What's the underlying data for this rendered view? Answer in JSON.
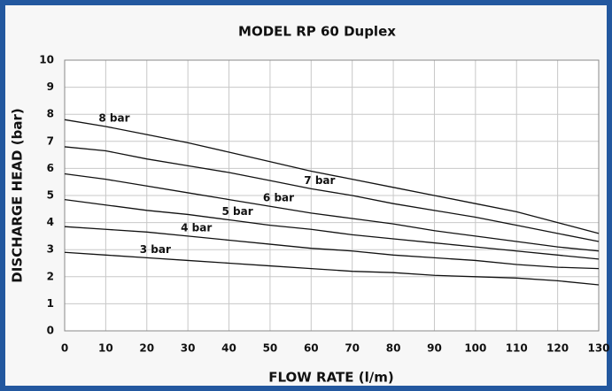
{
  "chart_data": {
    "type": "line",
    "title": "MODEL RP 60 Duplex",
    "xlabel": "FLOW RATE (l/m)",
    "ylabel": "DISCHARGE HEAD (bar)",
    "x": [
      0,
      10,
      20,
      30,
      40,
      50,
      60,
      70,
      80,
      90,
      100,
      110,
      120,
      130
    ],
    "series": [
      {
        "name": "8 bar",
        "color": "#111111",
        "values": [
          7.8,
          7.55,
          7.25,
          6.95,
          6.6,
          6.25,
          5.9,
          5.6,
          5.3,
          5.0,
          4.7,
          4.4,
          4.0,
          3.6
        ]
      },
      {
        "name": "7 bar",
        "color": "#111111",
        "values": [
          6.8,
          6.65,
          6.35,
          6.1,
          5.85,
          5.55,
          5.25,
          5.0,
          4.7,
          4.45,
          4.2,
          3.9,
          3.6,
          3.3
        ]
      },
      {
        "name": "6 bar",
        "color": "#111111",
        "values": [
          5.8,
          5.6,
          5.35,
          5.1,
          4.85,
          4.6,
          4.35,
          4.15,
          3.95,
          3.7,
          3.5,
          3.3,
          3.1,
          2.95
        ]
      },
      {
        "name": "5 bar",
        "color": "#111111",
        "values": [
          4.85,
          4.65,
          4.45,
          4.3,
          4.1,
          3.9,
          3.75,
          3.55,
          3.4,
          3.25,
          3.1,
          2.95,
          2.8,
          2.65
        ]
      },
      {
        "name": "4 bar",
        "color": "#111111",
        "values": [
          3.85,
          3.75,
          3.65,
          3.5,
          3.35,
          3.2,
          3.05,
          2.95,
          2.8,
          2.7,
          2.6,
          2.45,
          2.35,
          2.3
        ]
      },
      {
        "name": "3 bar",
        "color": "#111111",
        "values": [
          2.9,
          2.8,
          2.7,
          2.6,
          2.5,
          2.4,
          2.3,
          2.2,
          2.15,
          2.05,
          2.0,
          1.95,
          1.85,
          1.7
        ]
      }
    ],
    "xlim": [
      0,
      130
    ],
    "xticks": [
      0,
      10,
      20,
      30,
      40,
      50,
      60,
      70,
      80,
      90,
      100,
      110,
      120,
      130
    ],
    "ylim": [
      0,
      10
    ],
    "yticks": [
      0,
      1,
      2,
      3,
      4,
      5,
      6,
      7,
      8,
      9,
      10
    ],
    "grid": true
  }
}
